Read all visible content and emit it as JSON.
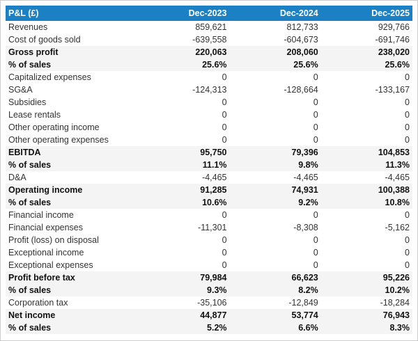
{
  "style": {
    "header_bg": "#1b80c4",
    "header_text": "#ffffff",
    "summary_row_bg": "#f4f4f4",
    "row_bg": "#ffffff",
    "body_text": "#333333",
    "outer_border": "#cccccc"
  },
  "chart_data": {
    "type": "table",
    "title": "P&L (£)",
    "columns": [
      "P&L (£)",
      "Dec-2023",
      "Dec-2024",
      "Dec-2025"
    ],
    "rows": [
      {
        "label": "Revenues",
        "values": [
          "859,621",
          "812,733",
          "929,766"
        ],
        "bold": false
      },
      {
        "label": "Cost of goods sold",
        "values": [
          "-639,558",
          "-604,673",
          "-691,746"
        ],
        "bold": false
      },
      {
        "label": "Gross profit",
        "values": [
          "220,063",
          "208,060",
          "238,020"
        ],
        "bold": true
      },
      {
        "label": "% of sales",
        "values": [
          "25.6%",
          "25.6%",
          "25.6%"
        ],
        "bold": true
      },
      {
        "label": "Capitalized expenses",
        "values": [
          "0",
          "0",
          "0"
        ],
        "bold": false
      },
      {
        "label": "SG&A",
        "values": [
          "-124,313",
          "-128,664",
          "-133,167"
        ],
        "bold": false
      },
      {
        "label": "Subsidies",
        "values": [
          "0",
          "0",
          "0"
        ],
        "bold": false
      },
      {
        "label": "Lease rentals",
        "values": [
          "0",
          "0",
          "0"
        ],
        "bold": false
      },
      {
        "label": "Other operating income",
        "values": [
          "0",
          "0",
          "0"
        ],
        "bold": false
      },
      {
        "label": "Other operating expenses",
        "values": [
          "0",
          "0",
          "0"
        ],
        "bold": false
      },
      {
        "label": "EBITDA",
        "values": [
          "95,750",
          "79,396",
          "104,853"
        ],
        "bold": true
      },
      {
        "label": "% of sales",
        "values": [
          "11.1%",
          "9.8%",
          "11.3%"
        ],
        "bold": true
      },
      {
        "label": "D&A",
        "values": [
          "-4,465",
          "-4,465",
          "-4,465"
        ],
        "bold": false
      },
      {
        "label": "Operating income",
        "values": [
          "91,285",
          "74,931",
          "100,388"
        ],
        "bold": true
      },
      {
        "label": "% of sales",
        "values": [
          "10.6%",
          "9.2%",
          "10.8%"
        ],
        "bold": true
      },
      {
        "label": "Financial income",
        "values": [
          "0",
          "0",
          "0"
        ],
        "bold": false
      },
      {
        "label": "Financial expenses",
        "values": [
          "-11,301",
          "-8,308",
          "-5,162"
        ],
        "bold": false
      },
      {
        "label": "Profit (loss) on disposal",
        "values": [
          "0",
          "0",
          "0"
        ],
        "bold": false
      },
      {
        "label": "Exceptional income",
        "values": [
          "0",
          "0",
          "0"
        ],
        "bold": false
      },
      {
        "label": "Exceptional expenses",
        "values": [
          "0",
          "0",
          "0"
        ],
        "bold": false
      },
      {
        "label": "Profit before tax",
        "values": [
          "79,984",
          "66,623",
          "95,226"
        ],
        "bold": true
      },
      {
        "label": "% of sales",
        "values": [
          "9.3%",
          "8.2%",
          "10.2%"
        ],
        "bold": true
      },
      {
        "label": "Corporation tax",
        "values": [
          "-35,106",
          "-12,849",
          "-18,284"
        ],
        "bold": false
      },
      {
        "label": "Net income",
        "values": [
          "44,877",
          "53,774",
          "76,943"
        ],
        "bold": true
      },
      {
        "label": "% of sales",
        "values": [
          "5.2%",
          "6.6%",
          "8.3%"
        ],
        "bold": true
      }
    ]
  }
}
